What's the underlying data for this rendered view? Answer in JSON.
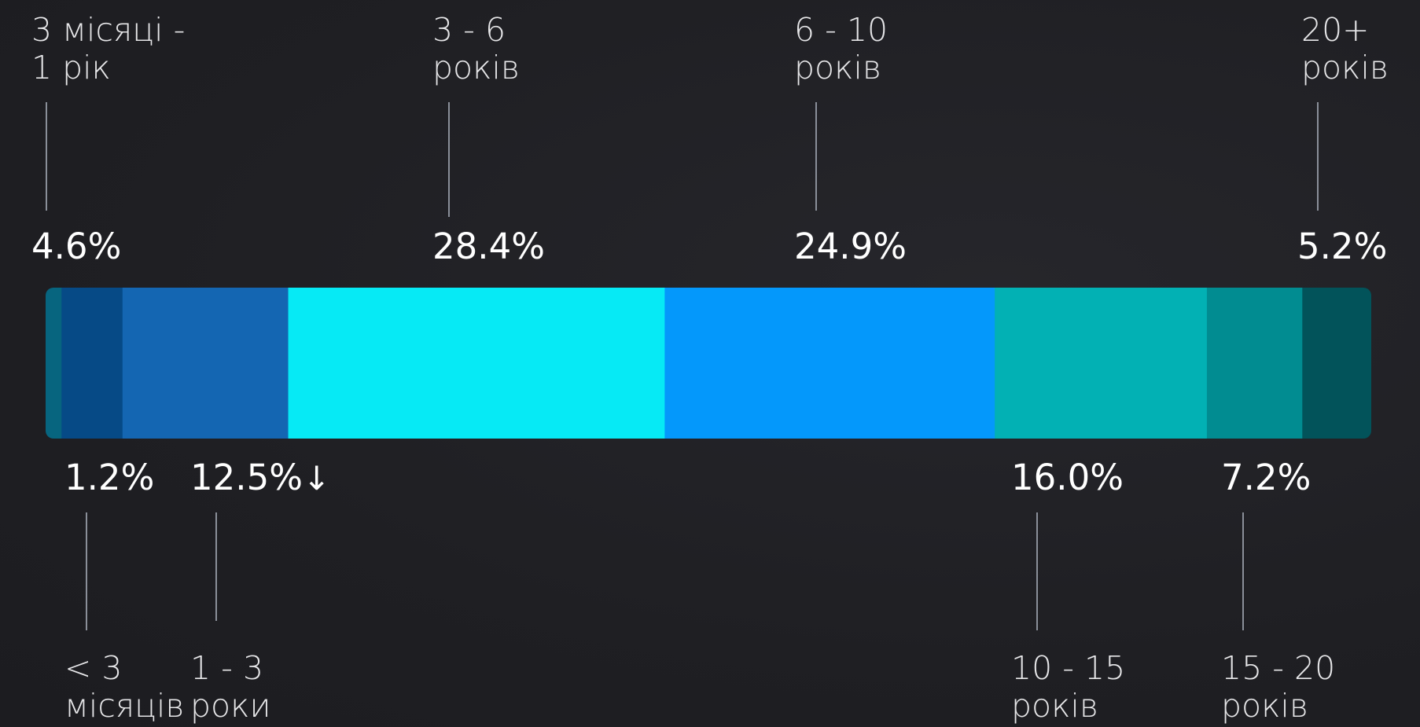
{
  "chart_data": {
    "type": "bar",
    "orientation": "horizontal-stacked",
    "segments": [
      {
        "label_lines": [
          "< 3",
          "місяців"
        ],
        "value": 1.2,
        "value_text": "1.2%",
        "color": "#07657f",
        "position": "bottom"
      },
      {
        "label_lines": [
          "3 місяці -",
          "1 рік"
        ],
        "value": 4.6,
        "value_text": "4.6%",
        "color": "#064a86",
        "position": "top"
      },
      {
        "label_lines": [
          "1 - 3",
          "роки"
        ],
        "value": 12.5,
        "value_text": "12.5%",
        "color": "#1466b2",
        "position": "bottom",
        "marker": "↓"
      },
      {
        "label_lines": [
          "3 - 6",
          "років"
        ],
        "value": 28.4,
        "value_text": "28.4%",
        "color": "#06eaf5",
        "position": "top"
      },
      {
        "label_lines": [
          "6 - 10",
          "років"
        ],
        "value": 24.9,
        "value_text": "24.9%",
        "color": "#0498fb",
        "position": "top"
      },
      {
        "label_lines": [
          "10 - 15",
          "років"
        ],
        "value": 16.0,
        "value_text": "16.0%",
        "color": "#02b1b4",
        "position": "bottom"
      },
      {
        "label_lines": [
          "15 - 20",
          "років"
        ],
        "value": 7.2,
        "value_text": "7.2%",
        "color": "#018c91",
        "position": "bottom"
      },
      {
        "label_lines": [
          "20+",
          "років"
        ],
        "value": 5.2,
        "value_text": "5.2%",
        "color": "#02535a",
        "position": "top"
      }
    ],
    "total": 100
  }
}
